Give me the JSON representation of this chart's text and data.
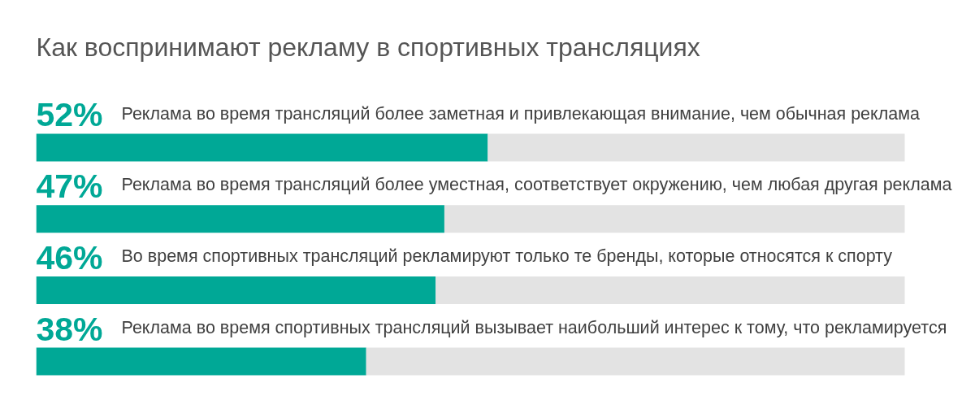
{
  "chart_data": {
    "type": "bar",
    "orientation": "horizontal",
    "stacked": true,
    "tick_labels": false,
    "title": "Как воспринимают рекламу в спортивных трансляциях",
    "categories": [
      "Реклама во время трансляций более заметная и привлекающая внимание, чем обычная реклама",
      "Реклама во время трансляций более уместная, соответствует окружению, чем любая другая реклама",
      "Во время спортивных трансляций рекламируют только те бренды, которые относятся к спорту",
      "Реклама во время спортивных трансляций вызывает наибольший интерес к тому, что рекламируется"
    ],
    "series": [
      {
        "color": "#00a896",
        "values": [
          52,
          47,
          46,
          38
        ],
        "value_labels": [
          "52%",
          "47%",
          "46%",
          "38%"
        ]
      },
      {
        "color": "#e3e3e3",
        "values": [
          48,
          53,
          54,
          62
        ]
      }
    ]
  }
}
